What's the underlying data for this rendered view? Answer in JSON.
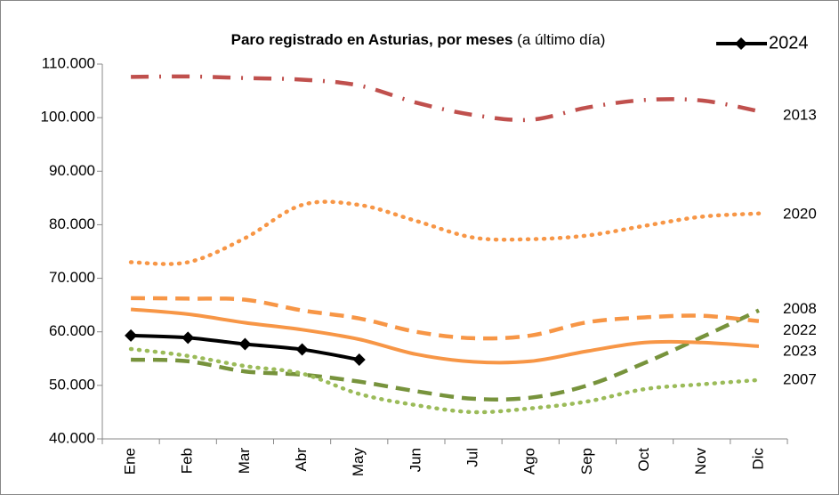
{
  "chart_data": {
    "type": "line",
    "title": "Paro registrado en Asturias, por meses",
    "subtitle": "(a último día)",
    "categories": [
      "Ene",
      "Feb",
      "Mar",
      "Abr",
      "May",
      "Jun",
      "Jul",
      "Ago",
      "Sep",
      "Oct",
      "Nov",
      "Dic"
    ],
    "ylim": [
      40000,
      110000
    ],
    "yticks": [
      {
        "value": 40000,
        "label": "40.000"
      },
      {
        "value": 50000,
        "label": "50.000"
      },
      {
        "value": 60000,
        "label": "60.000"
      },
      {
        "value": 70000,
        "label": "70.000"
      },
      {
        "value": 80000,
        "label": "80.000"
      },
      {
        "value": 90000,
        "label": "90.000"
      },
      {
        "value": 100000,
        "label": "100.000"
      },
      {
        "value": 110000,
        "label": "110.000"
      }
    ],
    "grid": false,
    "legend": "top-right",
    "series": [
      {
        "name": "2013",
        "color": "#c0504d",
        "style": "dashdot",
        "values": [
          107600,
          107700,
          107400,
          107100,
          106000,
          102800,
          100500,
          99600,
          101900,
          103300,
          103200,
          101200
        ]
      },
      {
        "name": "2020",
        "color": "#f79646",
        "style": "dotted",
        "values": [
          73000,
          73000,
          77500,
          83700,
          83700,
          80700,
          77600,
          77300,
          78000,
          79800,
          81500,
          82100
        ]
      },
      {
        "name": "2008",
        "color": "#77933c",
        "style": "dashed",
        "values": [
          54800,
          54500,
          52600,
          52000,
          50700,
          48900,
          47500,
          47700,
          50000,
          54200,
          59000,
          64000
        ]
      },
      {
        "name": "2022",
        "color": "#f79646",
        "style": "dashed",
        "values": [
          66300,
          66200,
          66000,
          64000,
          62500,
          60000,
          58800,
          59300,
          61800,
          62700,
          63000,
          62000
        ]
      },
      {
        "name": "2023",
        "color": "#f79646",
        "style": "solid",
        "values": [
          64200,
          63300,
          61700,
          60400,
          58600,
          55800,
          54400,
          54500,
          56400,
          58000,
          58000,
          57300
        ]
      },
      {
        "name": "2007",
        "color": "#9bbb59",
        "style": "dotted",
        "values": [
          56800,
          55500,
          53600,
          52200,
          48400,
          46300,
          45000,
          45700,
          47000,
          49300,
          50200,
          51000
        ]
      },
      {
        "name": "2024",
        "color": "#000000",
        "style": "solid",
        "marker": "diamond",
        "legend": true,
        "values": [
          59300,
          58900,
          57700,
          56700,
          54800,
          null,
          null,
          null,
          null,
          null,
          null,
          null
        ]
      }
    ]
  }
}
